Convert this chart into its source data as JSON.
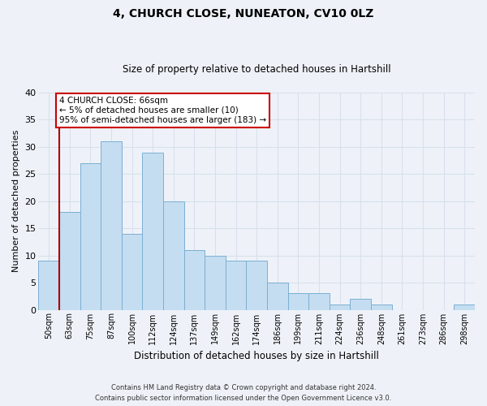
{
  "title": "4, CHURCH CLOSE, NUNEATON, CV10 0LZ",
  "subtitle": "Size of property relative to detached houses in Hartshill",
  "xlabel": "Distribution of detached houses by size in Hartshill",
  "ylabel": "Number of detached properties",
  "footer_line1": "Contains HM Land Registry data © Crown copyright and database right 2024.",
  "footer_line2": "Contains public sector information licensed under the Open Government Licence v3.0.",
  "bin_labels": [
    "50sqm",
    "63sqm",
    "75sqm",
    "87sqm",
    "100sqm",
    "112sqm",
    "124sqm",
    "137sqm",
    "149sqm",
    "162sqm",
    "174sqm",
    "186sqm",
    "199sqm",
    "211sqm",
    "224sqm",
    "236sqm",
    "248sqm",
    "261sqm",
    "273sqm",
    "286sqm",
    "298sqm"
  ],
  "bar_heights": [
    9,
    18,
    27,
    31,
    14,
    29,
    20,
    11,
    10,
    9,
    9,
    5,
    3,
    3,
    1,
    2,
    1,
    0,
    0,
    0,
    1
  ],
  "bar_color": "#c5ddf0",
  "bar_edge_color": "#7bafd4",
  "background_color": "#eef2f8",
  "grid_color": "#d8e0ec",
  "marker_line_color": "#aa0000",
  "annotation_line1": "4 CHURCH CLOSE: 66sqm",
  "annotation_line2": "← 5% of detached houses are smaller (10)",
  "annotation_line3": "95% of semi-detached houses are larger (183) →",
  "annotation_box_color": "#ffffff",
  "annotation_box_edge_color": "#cc0000",
  "ylim": [
    0,
    40
  ],
  "yticks": [
    0,
    5,
    10,
    15,
    20,
    25,
    30,
    35,
    40
  ],
  "marker_bar_index": 1
}
